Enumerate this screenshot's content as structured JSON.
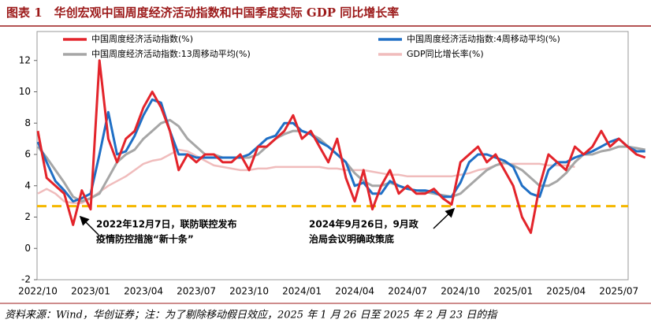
{
  "chart_data": {
    "type": "line",
    "title": "图表 1　华创宏观中国周度经济活动指数和中国季度实际 GDP 同比增长率",
    "source": "资料来源：Wind，华创证券；注：为了剔除移动假日效应，2025 年 1 月 26 日至 2025 年 2 月 23 日的指",
    "annotations": [
      "2022年12月7日，联防联控发布",
      "疫情防控措施“新十条”",
      "2024年9月26日，9月政",
      "治局会议明确政策底"
    ],
    "categories": [
      "2022/10",
      null,
      null,
      null,
      null,
      null,
      "2023/01",
      null,
      null,
      null,
      null,
      null,
      "2023/04",
      null,
      null,
      null,
      null,
      null,
      "2023/07",
      null,
      null,
      null,
      null,
      null,
      "2023/10",
      null,
      null,
      null,
      null,
      null,
      "2024/01",
      null,
      null,
      null,
      null,
      null,
      "2024/04",
      null,
      null,
      null,
      null,
      null,
      "2024/07",
      null,
      null,
      null,
      null,
      null,
      "2024/10",
      null,
      null,
      null,
      null,
      null,
      "2025/01",
      null,
      null,
      null,
      null,
      null,
      "2025/04",
      null,
      null,
      null,
      null,
      null,
      "2025/07",
      null,
      null,
      null
    ],
    "series": [
      {
        "name": "中国周度经济活动指数(%)",
        "color": "#e3242b",
        "width": 3,
        "values": [
          7.5,
          4.5,
          4,
          3.5,
          1.5,
          3.7,
          2.5,
          12,
          7,
          5.5,
          7,
          7.5,
          9,
          10,
          9,
          7.5,
          5,
          6,
          5.5,
          6,
          6,
          5.5,
          5.5,
          6,
          5,
          6.5,
          6.5,
          7,
          7.5,
          8.5,
          7,
          7.5,
          6.5,
          5.5,
          7,
          4.5,
          3,
          5,
          2.5,
          4,
          5,
          3.5,
          4,
          3.5,
          3.5,
          3.8,
          3.2,
          2.8,
          5.5,
          6,
          6.5,
          5.5,
          6,
          5,
          4,
          2,
          1,
          4,
          6,
          5.5,
          5,
          6.5,
          6,
          6.5,
          7.5,
          6.5,
          7,
          6.5,
          6,
          5.8
        ]
      },
      {
        "name": "中国周度经济活动指数:4周移动平均(%)",
        "color": "#1f6fc5",
        "width": 3,
        "values": [
          6.8,
          5.5,
          4.3,
          3.7,
          3,
          3.2,
          3.5,
          6,
          8.7,
          6,
          6.2,
          7.2,
          8.5,
          9.5,
          9.3,
          7.5,
          6,
          6,
          5.8,
          5.8,
          5.8,
          5.8,
          5.8,
          5.8,
          6,
          6.5,
          7,
          7.2,
          8,
          8,
          7.5,
          7.3,
          6.8,
          6.5,
          6,
          5.5,
          4,
          4.2,
          3.5,
          3.5,
          4.3,
          4,
          3.8,
          3.7,
          3.7,
          3.6,
          3.3,
          3.3,
          4.2,
          5.5,
          6,
          6,
          5.8,
          5.6,
          5.2,
          4,
          3.5,
          3.3,
          5,
          5.5,
          5.5,
          5.8,
          6,
          6.2,
          6.5,
          6.8,
          7,
          6.5,
          6.2,
          6.2
        ]
      },
      {
        "name": "中国周度经济活动指数:13周移动平均(%)",
        "color": "#a6a6a6",
        "width": 3,
        "values": [
          6.5,
          5.8,
          5,
          4.2,
          3.3,
          3,
          3.2,
          3.5,
          4.5,
          5.5,
          6,
          6.3,
          7,
          7.5,
          8,
          8.2,
          7.8,
          7,
          6.5,
          6,
          6,
          5.8,
          5.8,
          5.8,
          5.8,
          6,
          6.5,
          7,
          7.3,
          7.5,
          7.5,
          7.3,
          7,
          6.5,
          6,
          5.5,
          4.8,
          4.3,
          4,
          4,
          4.2,
          4,
          3.8,
          3.7,
          3.6,
          3.5,
          3.4,
          3.3,
          3.5,
          4,
          4.5,
          5,
          5.3,
          5.5,
          5.3,
          5,
          4.5,
          4,
          4,
          4.3,
          4.8,
          5.5,
          6,
          6,
          6.2,
          6.3,
          6.5,
          6.5,
          6.4,
          6.3
        ]
      },
      {
        "name": "GDP同比增长率(%)",
        "color": "#f0bcbc",
        "width": 2.5,
        "values": [
          3.5,
          3.8,
          3.5,
          3,
          2.9,
          2.9,
          3.2,
          3.6,
          4,
          4.3,
          4.6,
          5,
          5.4,
          5.6,
          5.7,
          6,
          6.3,
          6.2,
          5.9,
          5.6,
          5.3,
          5.2,
          5.1,
          5,
          5,
          5.1,
          5.1,
          5.2,
          5.2,
          5.2,
          5.2,
          5.2,
          5.2,
          5.1,
          5.1,
          5,
          5,
          5,
          4.9,
          4.8,
          4.7,
          4.7,
          4.6,
          4.6,
          4.6,
          4.6,
          4.6,
          4.6,
          4.7,
          4.8,
          5,
          5.1,
          5.3,
          5.4,
          5.4,
          5.4,
          5.4,
          5.4,
          5.3,
          5.3,
          5.3,
          5.2,
          null,
          null,
          null,
          null,
          null,
          null,
          null,
          null
        ]
      }
    ],
    "reference_line": {
      "value": 2.7,
      "color": "#f5b800"
    },
    "ylim": [
      -2,
      14
    ],
    "yticks": [
      -2,
      0,
      2,
      4,
      6,
      8,
      10,
      12
    ]
  }
}
